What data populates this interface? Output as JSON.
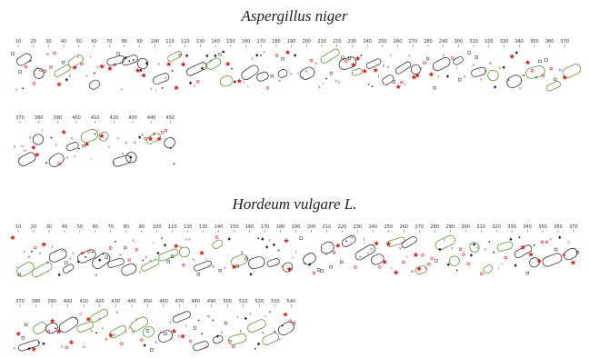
{
  "panels": [
    {
      "title": "Aspergillus niger",
      "row1_ticks": [
        "10",
        "20",
        "30",
        "40",
        "50",
        "60",
        "70",
        "80",
        "90",
        "100",
        "110",
        "120",
        "130",
        "140",
        "150",
        "160",
        "170",
        "180",
        "190",
        "200",
        "210",
        "220",
        "230",
        "240",
        "250",
        "260",
        "270",
        "280",
        "290",
        "300",
        "310",
        "320",
        "330",
        "340",
        "350",
        "360",
        "370"
      ],
      "row2_ticks": [
        "370",
        "380",
        "390",
        "400",
        "410",
        "420",
        "430",
        "440",
        "450"
      ]
    },
    {
      "title": "Hordeum vulgare L.",
      "row1_ticks": [
        "10",
        "20",
        "30",
        "40",
        "50",
        "60",
        "70",
        "80",
        "90",
        "100",
        "110",
        "120",
        "130",
        "140",
        "150",
        "160",
        "170",
        "180",
        "190",
        "200",
        "210",
        "220",
        "230",
        "240",
        "250",
        "260",
        "270",
        "280",
        "290",
        "300",
        "310",
        "320",
        "330",
        "340",
        "350",
        "360",
        "370"
      ],
      "row2_ticks": [
        "370",
        "380",
        "390",
        "400",
        "410",
        "420",
        "430",
        "440",
        "450",
        "460",
        "470",
        "480",
        "490",
        "500",
        "510",
        "520",
        "530",
        "540"
      ]
    }
  ],
  "colors": {
    "hydrophobic": "#e01a1a",
    "acidic": "#1f2fbf",
    "basic": "#1f2fbf",
    "helix_outline": "#1a1a1a",
    "helix_accent": "#4a8a1a",
    "neutral": "#222222"
  }
}
